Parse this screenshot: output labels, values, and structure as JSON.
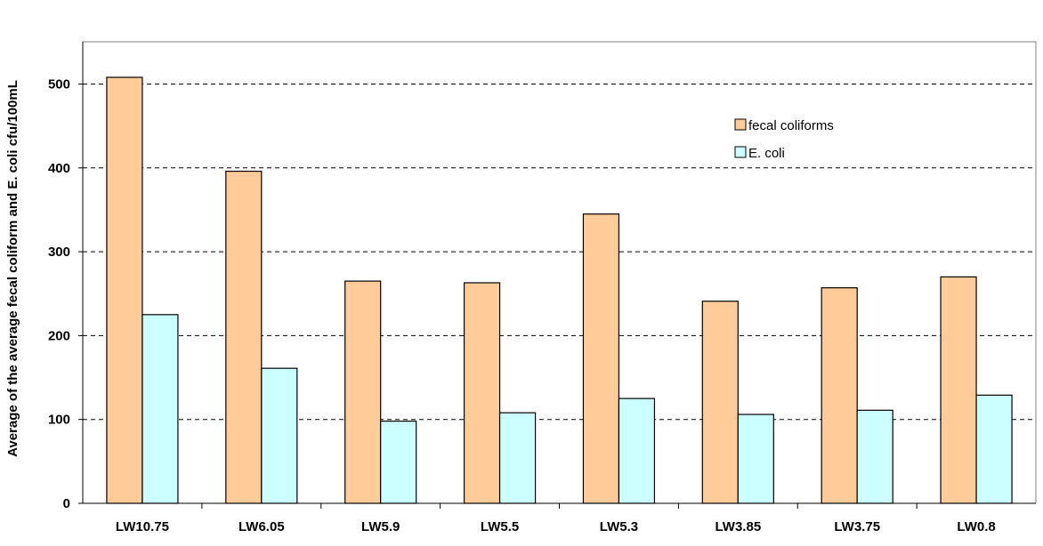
{
  "chart_data": {
    "type": "bar",
    "categories": [
      "LW10.75",
      "LW6.05",
      "LW5.9",
      "LW5.5",
      "LW5.3",
      "LW3.85",
      "LW3.75",
      "LW0.8"
    ],
    "series": [
      {
        "name": "fecal coliforms",
        "color": "#ffcc99",
        "values": [
          508,
          396,
          265,
          263,
          345,
          241,
          257,
          270
        ]
      },
      {
        "name": "E. coli",
        "color": "#ccffff",
        "values": [
          225,
          161,
          98,
          108,
          125,
          106,
          111,
          129
        ]
      }
    ],
    "ylabel": "Average of the average fecal coliform and E. coli cfu/100mL",
    "ylim": [
      0,
      500
    ],
    "yticks": [
      0,
      100,
      200,
      300,
      400,
      500
    ],
    "grid": true,
    "legend_position": "top-right"
  }
}
